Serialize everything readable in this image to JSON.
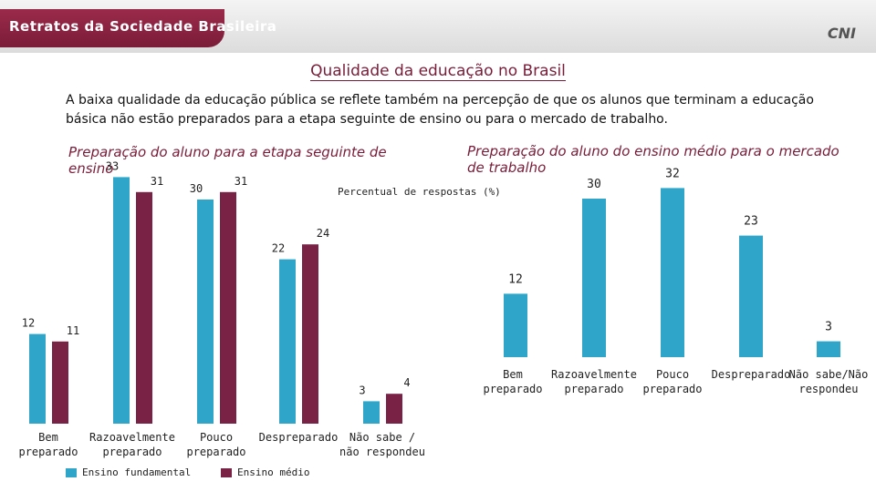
{
  "header": {
    "brand": "Retratos da Sociedade Brasileira",
    "logo": "CNI"
  },
  "title": "Qualidade da educação no Brasil",
  "intro": "A baixa qualidade da educação pública se reflete também na percepção de que os alunos que terminam a educação básica não estão preparados para a etapa seguinte de ensino ou para o mercado de trabalho.",
  "subtitle": "Percentual de respostas (%)",
  "colors": {
    "fundamental": "#2fa6c9",
    "medio": "#7a2245",
    "brand": "#7a1c39"
  },
  "chart_data": [
    {
      "type": "bar",
      "title": "Preparação do aluno para a etapa seguinte de ensino",
      "categories": [
        "Bem preparado",
        "Razoavelmente preparado",
        "Pouco preparado",
        "Despreparado",
        "Não sabe / não respondeu"
      ],
      "series": [
        {
          "name": "Ensino fundamental",
          "values": [
            12,
            33,
            30,
            22,
            3
          ]
        },
        {
          "name": "Ensino médio",
          "values": [
            11,
            31,
            31,
            24,
            4
          ]
        }
      ],
      "legend": "bottom"
    },
    {
      "type": "bar",
      "title": "Preparação do aluno do ensino médio para o mercado de trabalho",
      "categories": [
        "Bem preparado",
        "Razoavelmente preparado",
        "Pouco preparado",
        "Despreparado",
        "Não sabe/Não respondeu"
      ],
      "series": [
        {
          "name": "Ensino médio",
          "values": [
            12,
            30,
            32,
            23,
            3
          ]
        }
      ]
    }
  ]
}
